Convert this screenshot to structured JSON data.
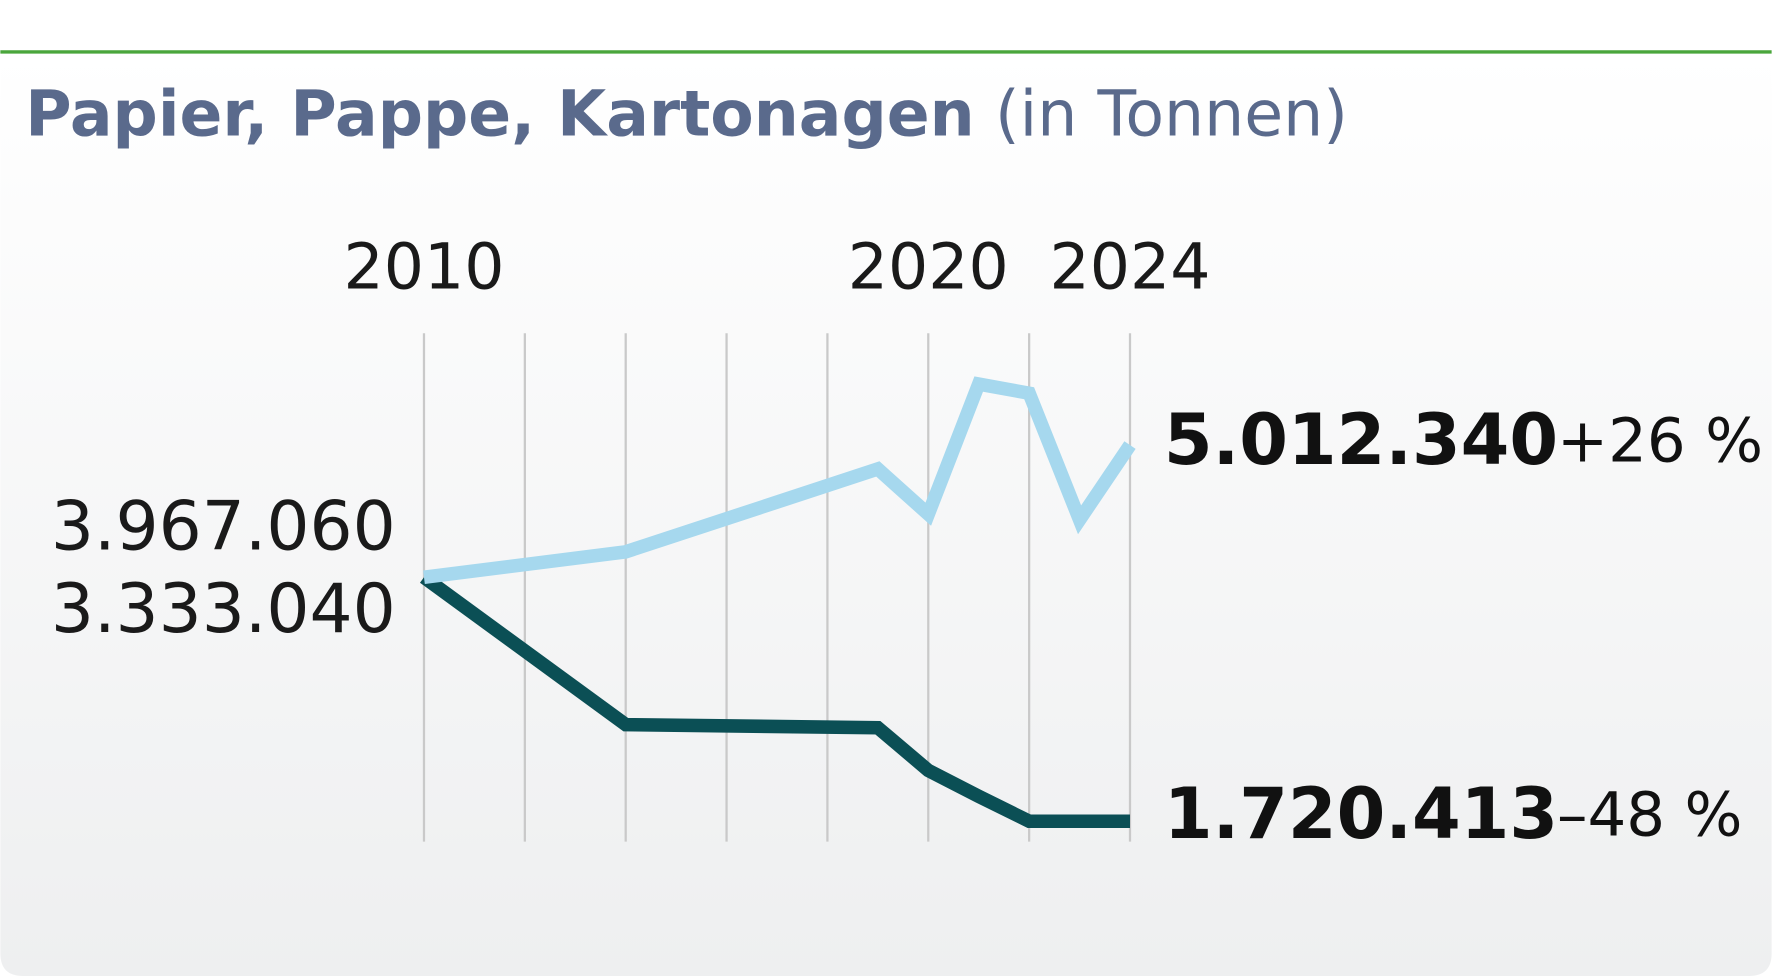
{
  "chart_data": {
    "type": "line",
    "title": "Papier, Pappe, Kartonagen",
    "subtitle": "(in Tonnen)",
    "x": [
      2010,
      2014,
      2019,
      2020,
      2021,
      2022,
      2023,
      2024
    ],
    "xlim": [
      2010,
      2024
    ],
    "xticks": [
      2010,
      2020,
      2024
    ],
    "xgrid": [
      2010,
      2012,
      2014,
      2016,
      2018,
      2020,
      2022,
      2024
    ],
    "ylim": [
      48,
      148
    ],
    "series": [
      {
        "color": "#a6d8ee",
        "values": [
          100,
          105,
          121.3,
          112.4,
          138,
          136.2,
          111.3,
          126
        ],
        "start_label": "3.967.060",
        "end_label": "5.012.340",
        "change_label": "+26 %"
      },
      {
        "color": "#0b4f55",
        "values": [
          100,
          71,
          70.4,
          62,
          56.9,
          52,
          52,
          52
        ],
        "start_label": "3.333.040",
        "end_label": "1.720.413",
        "change_label": "–48 %"
      }
    ]
  }
}
